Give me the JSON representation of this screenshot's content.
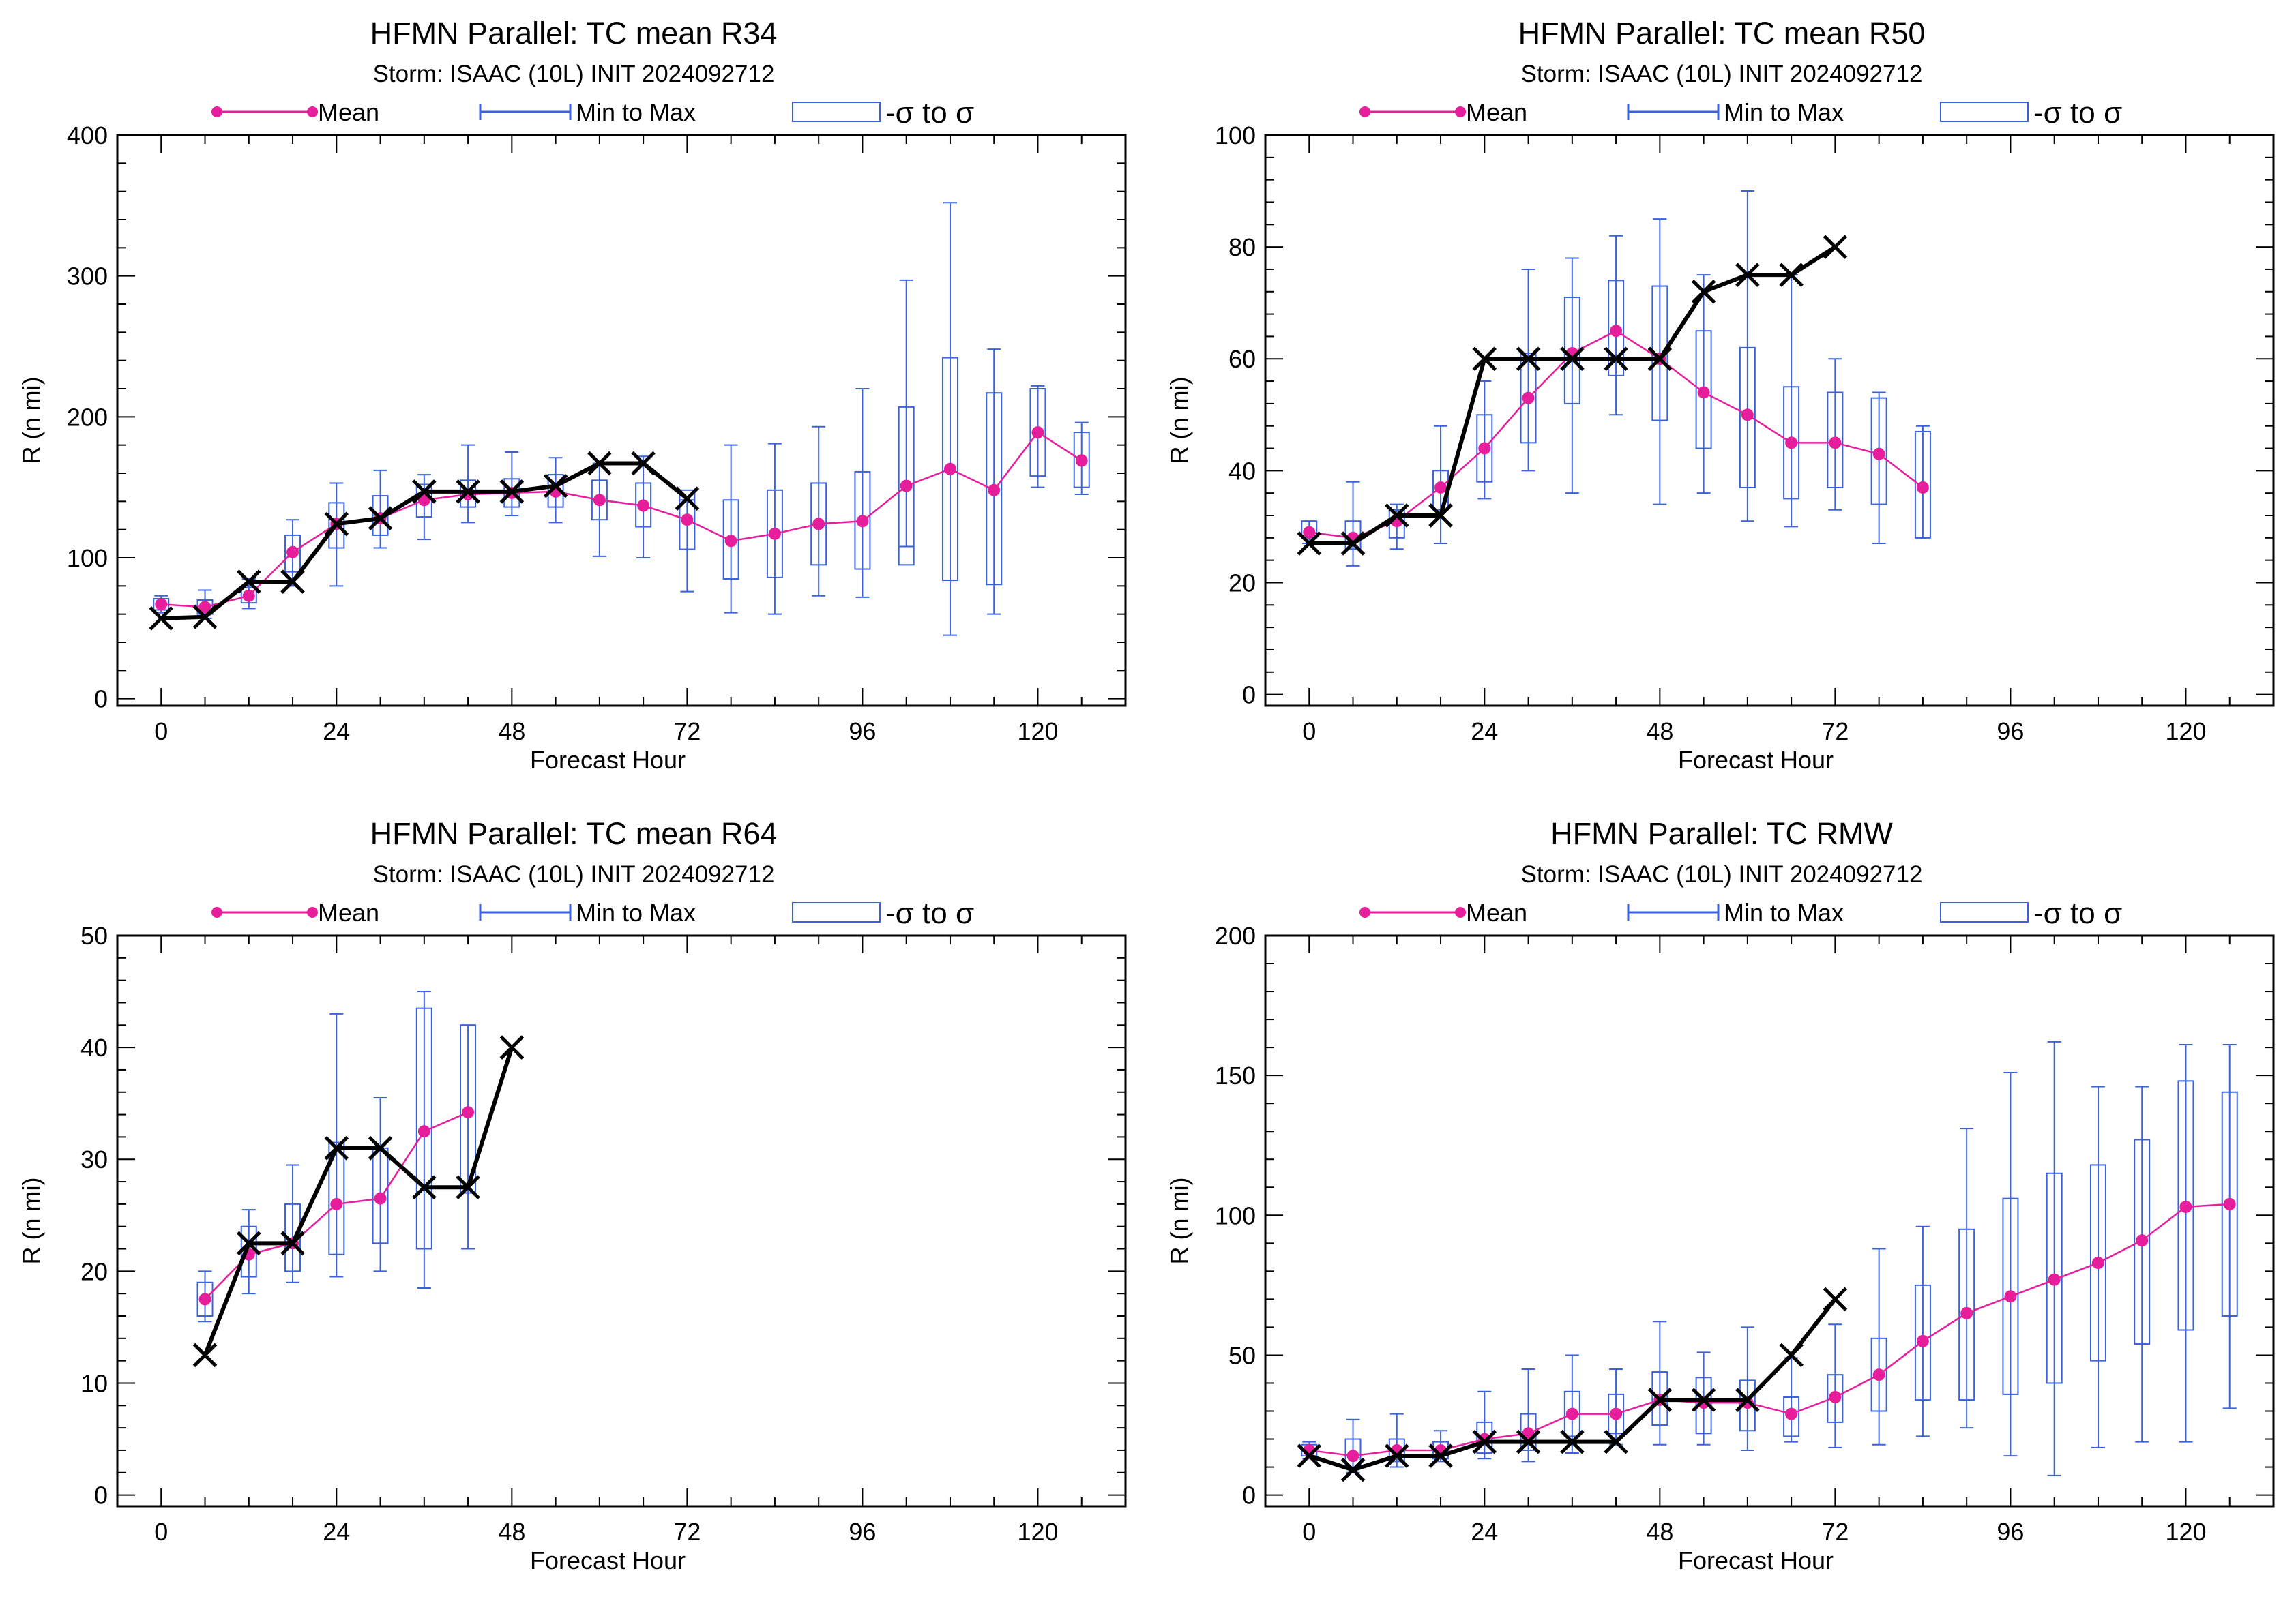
{
  "legend": {
    "mean": "Mean",
    "minmax": "Min to Max",
    "sigma": "-σ to σ"
  },
  "colors": {
    "mean": "#e61e9b",
    "box": "#3a62e0",
    "best_track": "#000000"
  },
  "chart_data": [
    {
      "type": "box",
      "title": "HFMN Parallel: TC mean R34",
      "subtitle": "Storm: ISAAC (10L) INIT 2024092712",
      "xlabel": "Forecast Hour",
      "ylabel": "R (n mi)",
      "xlim": [
        -6,
        132
      ],
      "ylim": [
        -5,
        400
      ],
      "xticks": [
        0,
        24,
        48,
        72,
        96,
        120
      ],
      "yticks": [
        0,
        100,
        200,
        300,
        400
      ],
      "x": [
        0,
        6,
        12,
        18,
        24,
        30,
        36,
        42,
        48,
        54,
        60,
        66,
        72,
        78,
        84,
        90,
        96,
        102,
        108,
        114,
        120,
        126
      ],
      "mean": [
        67,
        65,
        73,
        104,
        124,
        128,
        141,
        145,
        146,
        147,
        141,
        137,
        127,
        112,
        117,
        124,
        126,
        151,
        163,
        148,
        189,
        169
      ],
      "min": [
        61,
        57,
        64,
        80,
        80,
        107,
        113,
        125,
        130,
        125,
        101,
        100,
        76,
        61,
        60,
        73,
        72,
        108,
        45,
        60,
        150,
        145
      ],
      "max": [
        73,
        77,
        85,
        127,
        153,
        162,
        159,
        180,
        175,
        171,
        167,
        172,
        141,
        180,
        181,
        193,
        220,
        297,
        352,
        248,
        222,
        196
      ],
      "box_lo": [
        63,
        60,
        68,
        90,
        107,
        116,
        129,
        136,
        136,
        136,
        127,
        122,
        106,
        85,
        86,
        95,
        92,
        95,
        84,
        81,
        158,
        150
      ],
      "box_hi": [
        71,
        70,
        79,
        116,
        139,
        144,
        152,
        155,
        156,
        159,
        155,
        153,
        148,
        141,
        148,
        153,
        161,
        207,
        242,
        217,
        220,
        189
      ],
      "best_track_x": [
        0,
        6,
        12,
        18,
        24,
        30,
        36,
        42,
        48,
        54,
        60,
        66,
        72
      ],
      "best_track": [
        57,
        58,
        83,
        83,
        124,
        128,
        147,
        147,
        147,
        151,
        167,
        167,
        142
      ]
    },
    {
      "type": "box",
      "title": "HFMN Parallel: TC mean R50",
      "subtitle": "Storm: ISAAC (10L) INIT 2024092712",
      "xlabel": "Forecast Hour",
      "ylabel": "R (n mi)",
      "xlim": [
        -6,
        132
      ],
      "ylim": [
        -2,
        100
      ],
      "xticks": [
        0,
        24,
        48,
        72,
        96,
        120
      ],
      "yticks": [
        0,
        20,
        40,
        60,
        80,
        100
      ],
      "x": [
        0,
        6,
        12,
        18,
        24,
        30,
        36,
        42,
        48,
        54,
        60,
        66,
        72,
        78,
        84
      ],
      "mean": [
        29,
        28,
        31,
        37,
        44,
        53,
        61,
        65,
        60,
        54,
        50,
        45,
        45,
        43,
        37
      ],
      "min": [
        27,
        23,
        26,
        27,
        35,
        40,
        36,
        50,
        34,
        36,
        31,
        30,
        33,
        27,
        28
      ],
      "max": [
        31,
        38,
        34,
        48,
        56,
        76,
        78,
        82,
        85,
        75,
        90,
        75,
        60,
        54,
        48
      ],
      "box_lo": [
        28,
        26,
        28,
        33,
        38,
        45,
        52,
        57,
        49,
        44,
        37,
        35,
        37,
        34,
        28
      ],
      "box_hi": [
        31,
        31,
        33,
        40,
        50,
        61,
        71,
        74,
        73,
        65,
        62,
        55,
        54,
        53,
        47
      ],
      "best_track_x": [
        0,
        6,
        12,
        18,
        24,
        30,
        36,
        42,
        48,
        54,
        60,
        66,
        72
      ],
      "best_track": [
        27,
        27,
        32,
        32,
        60,
        60,
        60,
        60,
        60,
        72,
        75,
        75,
        80
      ]
    },
    {
      "type": "box",
      "title": "HFMN Parallel: TC mean R64",
      "subtitle": "Storm: ISAAC (10L) INIT 2024092712",
      "xlabel": "Forecast Hour",
      "ylabel": "R (n mi)",
      "xlim": [
        -6,
        132
      ],
      "ylim": [
        -1,
        50
      ],
      "xticks": [
        0,
        24,
        48,
        72,
        96,
        120
      ],
      "yticks": [
        0,
        10,
        20,
        30,
        40,
        50
      ],
      "x": [
        6,
        12,
        18,
        24,
        30,
        36,
        42
      ],
      "mean": [
        17.5,
        21.5,
        22.5,
        26,
        26.5,
        32.5,
        34.2
      ],
      "min": [
        15.5,
        18,
        19,
        19.5,
        20,
        18.5,
        22
      ],
      "max": [
        20,
        25.5,
        29.5,
        43,
        35.5,
        45,
        42
      ],
      "box_lo": [
        16,
        19.5,
        20,
        21.5,
        22.5,
        22,
        27
      ],
      "box_hi": [
        19,
        24,
        26,
        31.5,
        31,
        43.5,
        42
      ],
      "best_track_x": [
        6,
        12,
        18,
        24,
        30,
        36,
        42,
        48
      ],
      "best_track": [
        12.5,
        22.5,
        22.5,
        31,
        31,
        27.5,
        27.5,
        40
      ]
    },
    {
      "type": "box",
      "title": "HFMN Parallel: TC RMW",
      "subtitle": "Storm: ISAAC (10L) INIT 2024092712",
      "xlabel": "Forecast Hour",
      "ylabel": "R (n mi)",
      "xlim": [
        -6,
        132
      ],
      "ylim": [
        -4,
        200
      ],
      "xticks": [
        0,
        24,
        48,
        72,
        96,
        120
      ],
      "yticks": [
        0,
        50,
        100,
        150,
        200
      ],
      "x": [
        0,
        6,
        12,
        18,
        24,
        30,
        36,
        42,
        48,
        54,
        60,
        66,
        72,
        78,
        84,
        90,
        96,
        102,
        108,
        114,
        120,
        126
      ],
      "mean": [
        16,
        14,
        16,
        16,
        20,
        22,
        29,
        29,
        34,
        33,
        33,
        29,
        35,
        43,
        55,
        65,
        71,
        77,
        83,
        91,
        103,
        104
      ],
      "min": [
        13,
        8,
        10,
        12,
        13,
        12,
        15,
        18,
        18,
        18,
        16,
        19,
        17,
        18,
        21,
        24,
        14,
        7,
        17,
        19,
        19,
        31
      ],
      "max": [
        19,
        27,
        29,
        23,
        37,
        45,
        50,
        45,
        62,
        51,
        60,
        49,
        61,
        88,
        96,
        131,
        151,
        162,
        146,
        146,
        161,
        161
      ],
      "box_lo": [
        14,
        10,
        12,
        13,
        15,
        16,
        21,
        22,
        25,
        22,
        23,
        21,
        26,
        30,
        34,
        34,
        36,
        40,
        48,
        54,
        59,
        64
      ],
      "box_hi": [
        18,
        20,
        20,
        19,
        26,
        29,
        37,
        36,
        44,
        42,
        41,
        35,
        43,
        56,
        75,
        95,
        106,
        115,
        118,
        127,
        148,
        144
      ],
      "best_track_x": [
        0,
        6,
        12,
        18,
        24,
        30,
        36,
        42,
        48,
        54,
        60,
        66,
        72
      ],
      "best_track": [
        14,
        9,
        14,
        14,
        19,
        19,
        19,
        19,
        34,
        34,
        34,
        50,
        70
      ]
    }
  ]
}
